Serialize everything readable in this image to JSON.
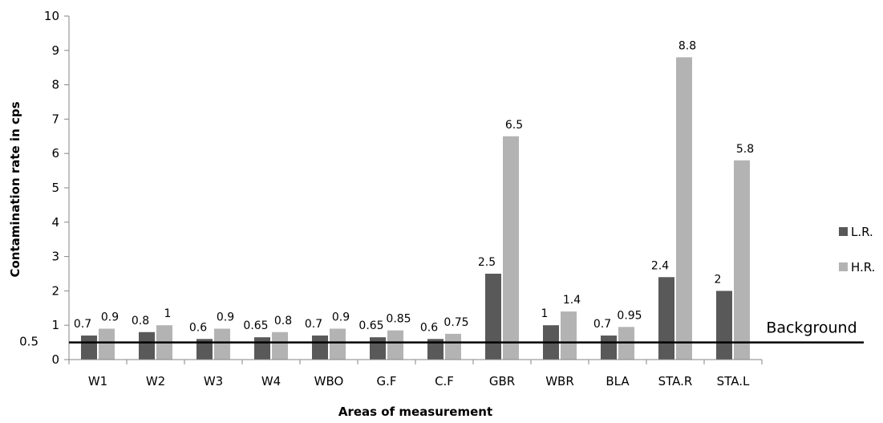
{
  "chart_data": {
    "type": "bar",
    "title": "",
    "xlabel": "Areas of measurement",
    "ylabel": "Contamination rate in cps",
    "ylim": [
      0,
      10
    ],
    "yticks": [
      "0",
      "1",
      "2",
      "3",
      "4",
      "5",
      "6",
      "7",
      "8",
      "9",
      "10"
    ],
    "categories": [
      "W1",
      "W2",
      "W3",
      "W4",
      "WBO",
      "G.F",
      "C.F",
      "GBR",
      "WBR",
      "BLA",
      "STA.R",
      "STA.L"
    ],
    "series": [
      {
        "name": "L.R.",
        "color": "#595959",
        "values": [
          0.7,
          0.8,
          0.6,
          0.65,
          0.7,
          0.65,
          0.6,
          2.5,
          1,
          0.7,
          2.4,
          2
        ]
      },
      {
        "name": "H.R.",
        "color": "#b3b3b3",
        "values": [
          0.9,
          1,
          0.9,
          0.8,
          0.9,
          0.85,
          0.75,
          6.5,
          1.4,
          0.95,
          8.8,
          5.8
        ]
      }
    ],
    "data_labels": {
      "L.R.": [
        "0.7",
        "0.8",
        "0.6",
        "0.65",
        "0.7",
        "0.65",
        "0.6",
        "2.5",
        "1",
        "0.7",
        "2.4",
        "2"
      ],
      "H.R.": [
        "0.9",
        "1",
        "0.9",
        "0.8",
        "0.9",
        "0.85",
        "0.75",
        "6.5",
        "1.4",
        "0.95",
        "8.8",
        "5.8"
      ]
    },
    "reference_line": {
      "value": 0.5,
      "value_label": "0.5",
      "label": "Background"
    },
    "legend": {
      "position": "right"
    },
    "grid": false
  }
}
